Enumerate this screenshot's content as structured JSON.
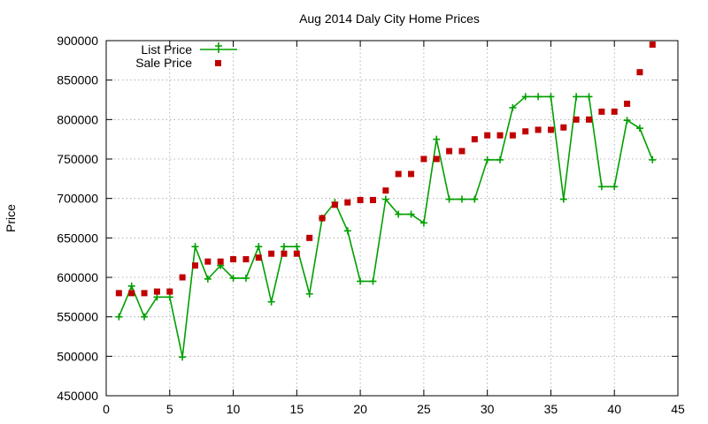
{
  "chart_data": {
    "type": "line",
    "title": "Aug 2014 Daly City Home Prices",
    "xlabel": "",
    "ylabel": "Price",
    "xlim": [
      0,
      45
    ],
    "ylim": [
      450000,
      900000
    ],
    "x_ticks": [
      0,
      5,
      10,
      15,
      20,
      25,
      30,
      35,
      40,
      45
    ],
    "y_ticks": [
      450000,
      500000,
      550000,
      600000,
      650000,
      700000,
      750000,
      800000,
      850000,
      900000
    ],
    "grid": true,
    "legend_position": "top-left",
    "series": [
      {
        "name": "List Price",
        "style": "line-with-plus-markers",
        "color": "#00a000",
        "x": [
          1,
          2,
          3,
          4,
          5,
          6,
          7,
          8,
          9,
          10,
          11,
          12,
          13,
          14,
          15,
          16,
          17,
          18,
          19,
          20,
          21,
          22,
          23,
          24,
          25,
          26,
          27,
          28,
          29,
          30,
          31,
          32,
          33,
          34,
          35,
          36,
          37,
          38,
          39,
          40,
          41,
          42,
          43
        ],
        "y": [
          550000,
          589000,
          550000,
          575000,
          575000,
          499000,
          639000,
          598000,
          615000,
          599000,
          599000,
          639000,
          569000,
          639000,
          639000,
          579000,
          675000,
          695000,
          659000,
          595000,
          595000,
          699000,
          680000,
          680000,
          669000,
          775000,
          699000,
          699000,
          699000,
          749000,
          749000,
          815000,
          829000,
          829000,
          829000,
          699000,
          829000,
          829000,
          715000,
          715000,
          799000,
          789000,
          749000
        ]
      },
      {
        "name": "Sale Price",
        "style": "square-markers",
        "color": "#c00000",
        "x": [
          1,
          2,
          3,
          4,
          5,
          6,
          7,
          8,
          9,
          10,
          11,
          12,
          13,
          14,
          15,
          16,
          17,
          18,
          19,
          20,
          21,
          22,
          23,
          24,
          25,
          26,
          27,
          28,
          29,
          30,
          31,
          32,
          33,
          34,
          35,
          36,
          37,
          38,
          39,
          40,
          41,
          42,
          43
        ],
        "y": [
          580000,
          580000,
          580000,
          582000,
          582000,
          600000,
          615000,
          620000,
          620000,
          623000,
          623000,
          625000,
          630000,
          630000,
          630000,
          650000,
          675000,
          692000,
          695000,
          698000,
          698000,
          710000,
          731000,
          731000,
          750000,
          750000,
          760000,
          760000,
          775000,
          780000,
          780000,
          780000,
          785000,
          787000,
          787000,
          790000,
          800000,
          800000,
          810000,
          810000,
          820000,
          860000,
          895000
        ]
      }
    ]
  }
}
